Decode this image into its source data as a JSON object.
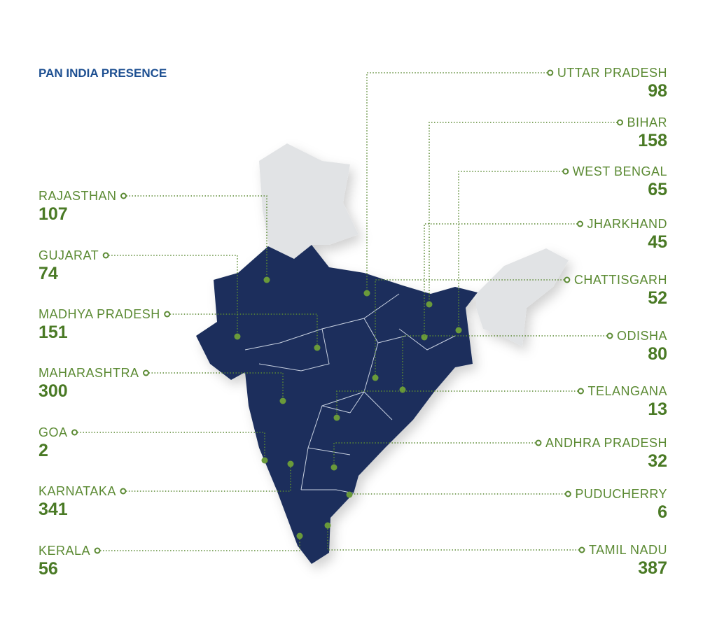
{
  "title": "PAN INDIA PRESENCE",
  "left_states": [
    {
      "name": "RAJASTHAN",
      "value": 107
    },
    {
      "name": "GUJARAT",
      "value": 74
    },
    {
      "name": "MADHYA PRADESH",
      "value": 151
    },
    {
      "name": "MAHARASHTRA",
      "value": 300
    },
    {
      "name": "GOA",
      "value": 2
    },
    {
      "name": "KARNATAKA",
      "value": 341
    },
    {
      "name": "KERALA",
      "value": 56
    }
  ],
  "right_states": [
    {
      "name": "UTTAR PRADESH",
      "value": 98
    },
    {
      "name": "BIHAR",
      "value": 158
    },
    {
      "name": "WEST BENGAL",
      "value": 65
    },
    {
      "name": "JHARKHAND",
      "value": 45
    },
    {
      "name": "CHATTISGARH",
      "value": 52
    },
    {
      "name": "ODISHA",
      "value": 80
    },
    {
      "name": "TELANGANA",
      "value": 13
    },
    {
      "name": "ANDHRA PRADESH",
      "value": 32
    },
    {
      "name": "PUDUCHERRY",
      "value": 6
    },
    {
      "name": "TAMIL NADU",
      "value": 387
    }
  ]
}
